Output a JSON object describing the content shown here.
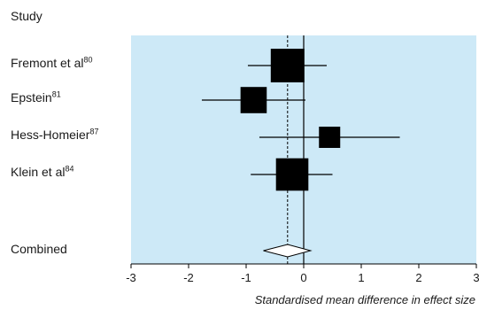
{
  "chart_data": {
    "type": "forest",
    "header": "Study",
    "studies": [
      {
        "name": "Fremont et al",
        "ref": "80",
        "estimate": -0.28,
        "ci": [
          -0.97,
          0.4
        ],
        "weight": 1.0
      },
      {
        "name": "Epstein",
        "ref": "81",
        "estimate": -0.87,
        "ci": [
          -1.77,
          0.03
        ],
        "weight": 0.7
      },
      {
        "name": "Hess-Homeier",
        "ref": "87",
        "estimate": 0.45,
        "ci": [
          -0.77,
          1.67
        ],
        "weight": 0.5
      },
      {
        "name": "Klein et al",
        "ref": "84",
        "estimate": -0.2,
        "ci": [
          -0.92,
          0.5
        ],
        "weight": 0.95
      }
    ],
    "combined": {
      "name": "Combined",
      "estimate": -0.28,
      "ci": [
        -0.7,
        0.12
      ]
    },
    "xlabel": "Standardised mean difference in effect size",
    "xlim": [
      -3,
      3
    ],
    "xticks": [
      -3,
      -2,
      -1,
      0,
      1,
      2,
      3
    ],
    "reference_line": 0,
    "dotted_line": -0.28,
    "plot_background": "#cde9f7",
    "marker_color": "#000000"
  }
}
